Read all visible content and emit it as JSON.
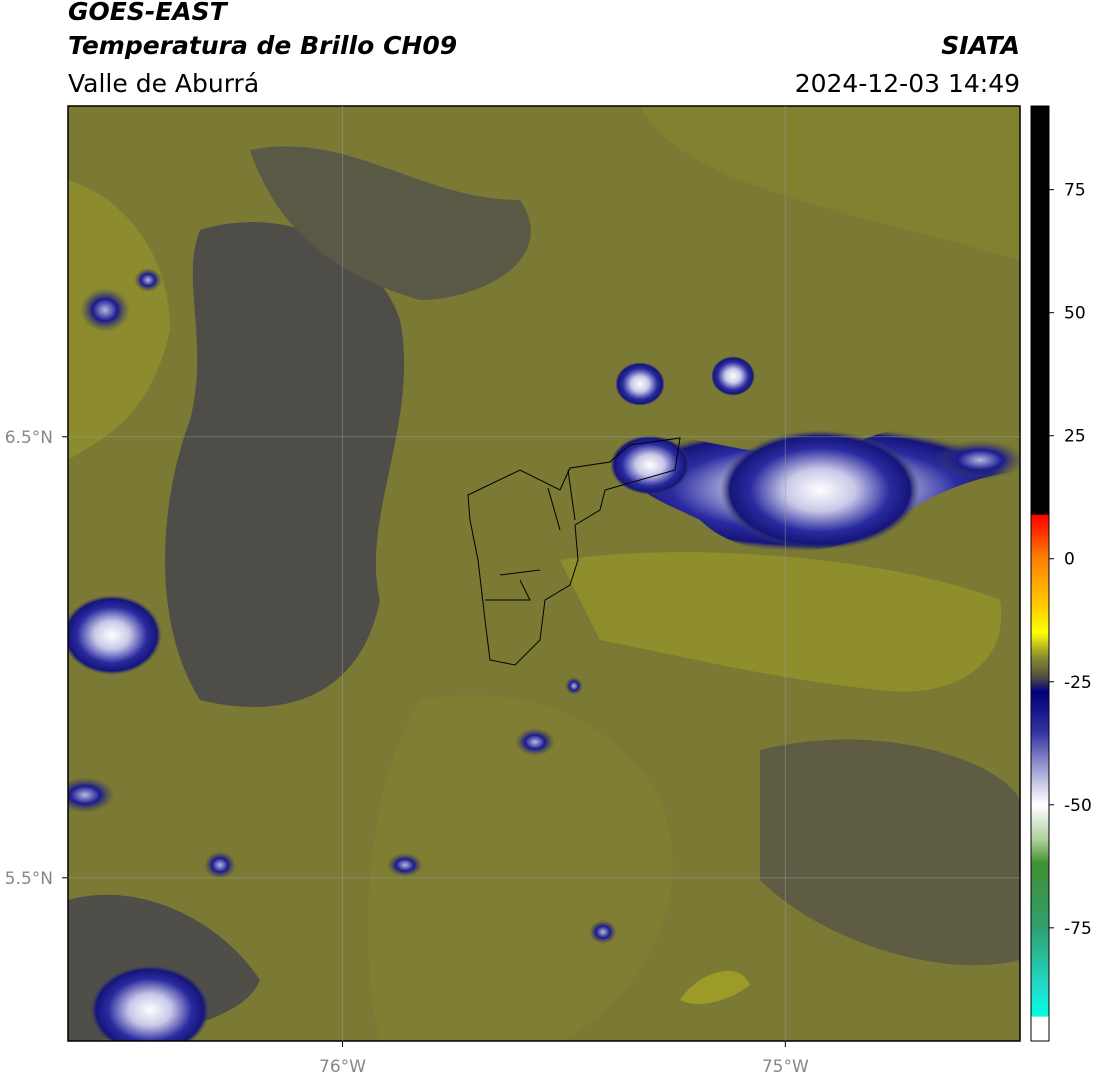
{
  "map": {
    "title": "GOES-EAST",
    "subtitle": "Temperatura de Brillo CH09",
    "region": "Valle de Aburrá",
    "source": "SIATA",
    "datetime": "2024-12-03 14:49",
    "xlim": [
      -76.62,
      -74.47
    ],
    "ylim": [
      5.13,
      7.25
    ],
    "xticks": [
      {
        "value": -76,
        "label": "76°W"
      },
      {
        "value": -75,
        "label": "75°W"
      }
    ],
    "yticks": [
      {
        "value": 6.5,
        "label": "6.5°N"
      },
      {
        "value": 5.5,
        "label": "5.5°N"
      }
    ],
    "grid": true
  },
  "colorbar": {
    "lim": [
      -98,
      92
    ],
    "ticks": [
      75,
      50,
      25,
      0,
      -25,
      -50,
      -75
    ],
    "stops": [
      {
        "value": 92,
        "color": "#000000"
      },
      {
        "value": 9,
        "color": "#000000"
      },
      {
        "value": 8.9,
        "color": "#ff0000"
      },
      {
        "value": 0,
        "color": "#ff8000"
      },
      {
        "value": -10,
        "color": "#ffd000"
      },
      {
        "value": -15,
        "color": "#ffff00"
      },
      {
        "value": -20,
        "color": "#8c8c30"
      },
      {
        "value": -24,
        "color": "#505040"
      },
      {
        "value": -27,
        "color": "#00007a"
      },
      {
        "value": -35,
        "color": "#3030a0"
      },
      {
        "value": -45,
        "color": "#c0c0e0"
      },
      {
        "value": -50,
        "color": "#ffffff"
      },
      {
        "value": -57,
        "color": "#b0d0a0"
      },
      {
        "value": -62,
        "color": "#409030"
      },
      {
        "value": -75,
        "color": "#30a070"
      },
      {
        "value": -88,
        "color": "#20e0d0"
      },
      {
        "value": -93,
        "color": "#00ffe0"
      },
      {
        "value": -93.1,
        "color": "#ffffff"
      },
      {
        "value": -98,
        "color": "#ffffff"
      }
    ]
  }
}
